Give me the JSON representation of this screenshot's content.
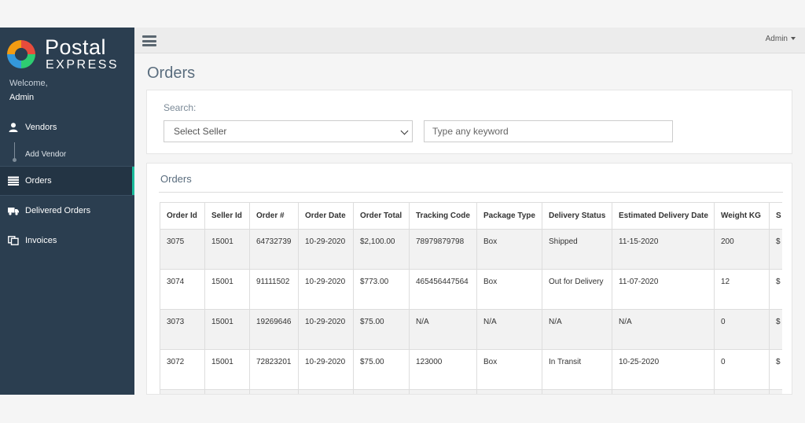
{
  "brand": {
    "line1": "Postal",
    "line2": "EXPRESS",
    "colors": [
      "#e74c3c",
      "#f1c40f",
      "#2ecc71",
      "#3498db"
    ]
  },
  "sidebar": {
    "welcome": "Welcome,",
    "username": "Admin",
    "items": [
      {
        "label": "Vendors",
        "icon": "user-icon"
      },
      {
        "label": "Add Vendor",
        "icon": ""
      },
      {
        "label": "Orders",
        "icon": "list-icon",
        "active": true
      },
      {
        "label": "Delivered Orders",
        "icon": "truck-icon"
      },
      {
        "label": "Invoices",
        "icon": "copy-icon"
      }
    ]
  },
  "topbar": {
    "menu_icon": "hamburger-icon",
    "user_label": "Admin"
  },
  "page": {
    "title": "Orders"
  },
  "search": {
    "label": "Search:",
    "seller_selected": "Select Seller",
    "keyword_placeholder": "Type any keyword"
  },
  "orders": {
    "panel_title": "Orders",
    "columns": [
      "Order Id",
      "Seller Id",
      "Order #",
      "Order Date",
      "Order Total",
      "Tracking Code",
      "Package Type",
      "Delivery Status",
      "Estimated Delivery Date",
      "Weight KG",
      "S"
    ],
    "rows": [
      [
        "3075",
        "15001",
        "64732739",
        "10-29-2020",
        "$2,100.00",
        "78979879798",
        "Box",
        "Shipped",
        "11-15-2020",
        "200",
        "$"
      ],
      [
        "3074",
        "15001",
        "91111502",
        "10-29-2020",
        "$773.00",
        "465456447564",
        "Box",
        "Out for Delivery",
        "11-07-2020",
        "12",
        "$"
      ],
      [
        "3073",
        "15001",
        "19269646",
        "10-29-2020",
        "$75.00",
        "N/A",
        "N/A",
        "N/A",
        "N/A",
        "0",
        "$"
      ],
      [
        "3072",
        "15001",
        "72823201",
        "10-29-2020",
        "$75.00",
        "123000",
        "Box",
        "In Transit",
        "10-25-2020",
        "0",
        "$"
      ],
      [
        "",
        "",
        "",
        "",
        "",
        "",
        "",
        "",
        "",
        "",
        ""
      ]
    ]
  }
}
